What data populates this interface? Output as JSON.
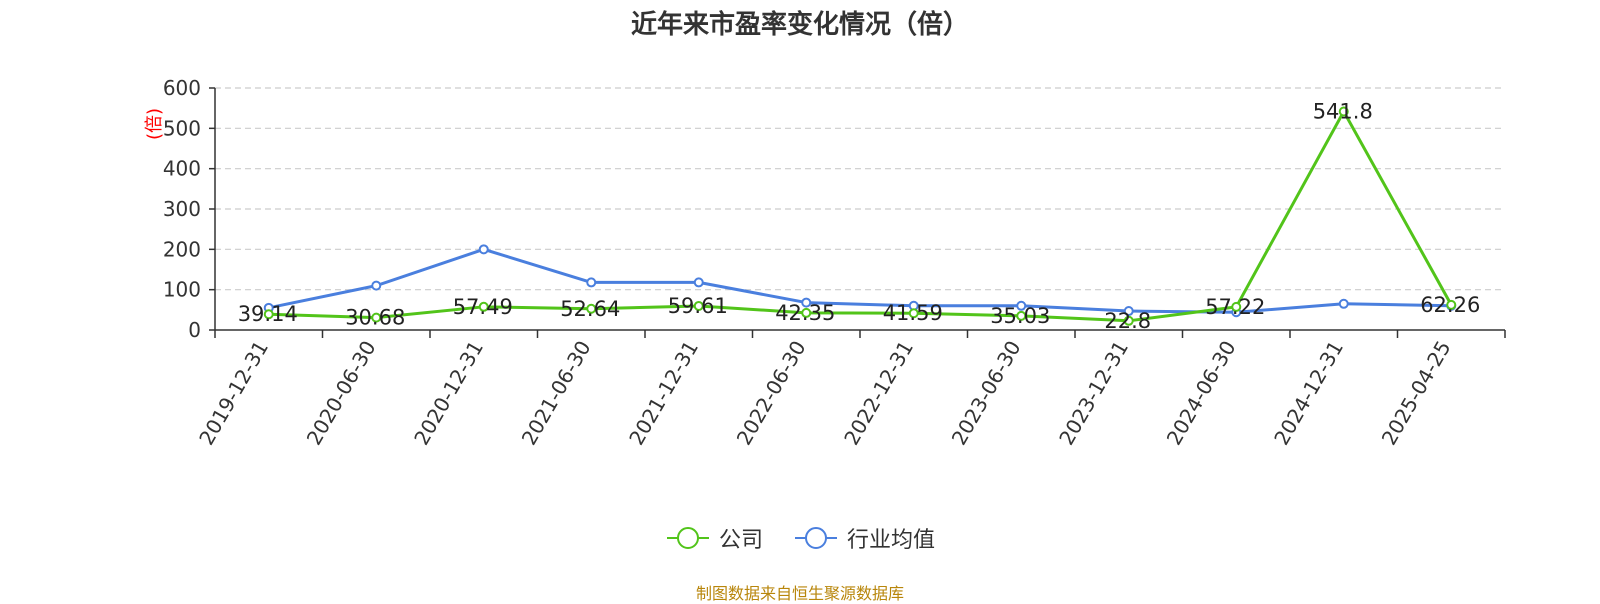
{
  "title": "近年来市盈率变化情况（倍）",
  "source": "制图数据来自恒生聚源数据库",
  "colors": {
    "company": "#52c41a",
    "industry": "#4a7fde",
    "unit_label": "#ff0000",
    "source": "#b8860b"
  },
  "chart_data": {
    "type": "line",
    "title": "近年来市盈率变化情况（倍）",
    "ylabel": "(倍)",
    "xlabel": "",
    "ylim": [
      0,
      600
    ],
    "yticks": [
      0,
      100,
      200,
      300,
      400,
      500,
      600
    ],
    "grid": "horizontal-dashed",
    "legend_position": "bottom",
    "categories": [
      "2019-12-31",
      "2020-06-30",
      "2020-12-31",
      "2021-06-30",
      "2021-12-31",
      "2022-06-30",
      "2022-12-31",
      "2023-06-30",
      "2023-12-31",
      "2024-06-30",
      "2024-12-31",
      "2025-04-25"
    ],
    "series": [
      {
        "name": "公司",
        "color": "#52c41a",
        "show_labels": true,
        "values": [
          39.14,
          30.68,
          57.49,
          52.64,
          59.61,
          42.35,
          41.59,
          35.03,
          22.8,
          57.22,
          541.8,
          62.26
        ]
      },
      {
        "name": "行业均值",
        "color": "#4a7fde",
        "show_labels": false,
        "values": [
          55,
          110,
          200,
          118,
          118,
          68,
          60,
          60,
          47,
          44,
          65,
          60
        ]
      }
    ]
  }
}
